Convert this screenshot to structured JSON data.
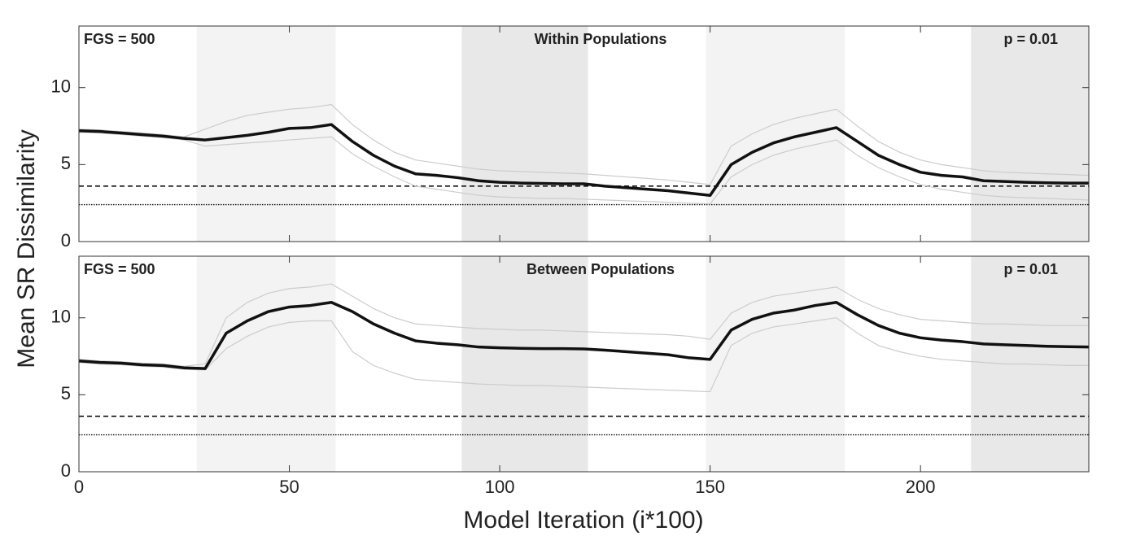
{
  "figure": {
    "ylabel": "Mean SR Dissimilarity",
    "xlabel": "Model Iteration (i*100)"
  },
  "chart_data": [
    {
      "type": "line",
      "title": "Within Populations",
      "annotations": [
        "FGS = 500",
        "p = 0.01"
      ],
      "xlim": [
        0,
        240
      ],
      "ylim": [
        0,
        14
      ],
      "xticks": [
        0,
        50,
        100,
        150,
        200
      ],
      "yticks": [
        0,
        5,
        10
      ],
      "shaded_regions": [
        {
          "x": [
            28,
            61
          ],
          "color": "#f3f3f3"
        },
        {
          "x": [
            91,
            121
          ],
          "color": "#e8e8e8"
        },
        {
          "x": [
            149,
            182
          ],
          "color": "#f3f3f3"
        },
        {
          "x": [
            212,
            240
          ],
          "color": "#e8e8e8"
        }
      ],
      "hlines": [
        {
          "y": 3.6,
          "style": "dashed"
        },
        {
          "y": 2.4,
          "style": "dotted"
        }
      ],
      "x": [
        0,
        5,
        10,
        15,
        20,
        25,
        30,
        35,
        40,
        45,
        50,
        55,
        60,
        65,
        70,
        75,
        80,
        85,
        90,
        95,
        100,
        105,
        110,
        115,
        120,
        125,
        130,
        135,
        140,
        145,
        150,
        155,
        160,
        165,
        170,
        175,
        180,
        185,
        190,
        195,
        200,
        205,
        210,
        215,
        220,
        225,
        230,
        235,
        240
      ],
      "runs": [
        {
          "color": "#cccccc",
          "values": [
            7.3,
            7.25,
            7.15,
            7.05,
            6.95,
            6.8,
            7.3,
            7.8,
            8.2,
            8.4,
            8.6,
            8.7,
            8.9,
            7.6,
            6.6,
            5.8,
            5.3,
            5.1,
            4.9,
            4.7,
            4.6,
            4.55,
            4.5,
            4.45,
            4.4,
            4.3,
            4.2,
            4.1,
            4.0,
            3.85,
            3.7,
            6.2,
            7.0,
            7.6,
            8.0,
            8.3,
            8.6,
            7.5,
            6.5,
            5.8,
            5.3,
            5.0,
            4.8,
            4.6,
            4.5,
            4.45,
            4.4,
            4.35,
            4.3
          ]
        },
        {
          "color": "#cccccc",
          "values": [
            7.1,
            7.05,
            6.95,
            6.85,
            6.75,
            6.6,
            6.2,
            6.3,
            6.4,
            6.5,
            6.6,
            6.7,
            6.8,
            5.7,
            4.9,
            4.2,
            3.6,
            3.4,
            3.2,
            3.0,
            2.9,
            2.85,
            2.8,
            2.8,
            2.75,
            2.7,
            2.65,
            2.6,
            2.55,
            2.5,
            2.45,
            4.2,
            5.0,
            5.6,
            6.0,
            6.3,
            6.6,
            5.6,
            4.8,
            4.2,
            3.7,
            3.4,
            3.2,
            3.0,
            2.9,
            2.85,
            2.8,
            2.75,
            2.7
          ]
        }
      ],
      "mean": {
        "color": "#111111",
        "values": [
          7.2,
          7.15,
          7.05,
          6.95,
          6.85,
          6.7,
          6.6,
          6.75,
          6.9,
          7.1,
          7.35,
          7.4,
          7.6,
          6.5,
          5.6,
          4.9,
          4.4,
          4.3,
          4.15,
          3.95,
          3.85,
          3.8,
          3.78,
          3.75,
          3.75,
          3.6,
          3.5,
          3.4,
          3.3,
          3.15,
          3.0,
          5.0,
          5.8,
          6.4,
          6.8,
          7.1,
          7.4,
          6.5,
          5.6,
          5.0,
          4.5,
          4.3,
          4.2,
          3.95,
          3.9,
          3.85,
          3.82,
          3.8,
          3.8
        ]
      }
    },
    {
      "type": "line",
      "title": "Between Populations",
      "annotations": [
        "FGS = 500",
        "p = 0.01"
      ],
      "xlim": [
        0,
        240
      ],
      "ylim": [
        0,
        14
      ],
      "xticks": [
        0,
        50,
        100,
        150,
        200
      ],
      "yticks": [
        0,
        5,
        10
      ],
      "shaded_regions": [
        {
          "x": [
            28,
            61
          ],
          "color": "#f3f3f3"
        },
        {
          "x": [
            91,
            121
          ],
          "color": "#e8e8e8"
        },
        {
          "x": [
            149,
            182
          ],
          "color": "#f3f3f3"
        },
        {
          "x": [
            212,
            240
          ],
          "color": "#e8e8e8"
        }
      ],
      "hlines": [
        {
          "y": 3.6,
          "style": "dashed"
        },
        {
          "y": 2.4,
          "style": "dotted"
        }
      ],
      "x": [
        0,
        5,
        10,
        15,
        20,
        25,
        30,
        35,
        40,
        45,
        50,
        55,
        60,
        65,
        70,
        75,
        80,
        85,
        90,
        95,
        100,
        105,
        110,
        115,
        120,
        125,
        130,
        135,
        140,
        145,
        150,
        155,
        160,
        165,
        170,
        175,
        180,
        185,
        190,
        195,
        200,
        205,
        210,
        215,
        220,
        225,
        230,
        235,
        240
      ],
      "runs": [
        {
          "color": "#cccccc",
          "values": [
            7.3,
            7.2,
            7.15,
            7.05,
            7.0,
            6.85,
            7.0,
            10.0,
            11.0,
            11.6,
            11.9,
            12.0,
            12.2,
            11.4,
            10.6,
            10.0,
            9.6,
            9.5,
            9.4,
            9.3,
            9.25,
            9.2,
            9.2,
            9.15,
            9.1,
            9.05,
            9.0,
            8.95,
            8.9,
            8.8,
            8.6,
            10.3,
            11.0,
            11.4,
            11.6,
            11.8,
            12.0,
            11.2,
            10.6,
            10.2,
            9.9,
            9.8,
            9.7,
            9.6,
            9.6,
            9.55,
            9.5,
            9.5,
            9.5
          ]
        },
        {
          "color": "#cccccc",
          "values": [
            7.1,
            7.0,
            6.95,
            6.85,
            6.8,
            6.65,
            6.6,
            8.0,
            8.8,
            9.4,
            9.7,
            9.8,
            9.8,
            7.8,
            6.9,
            6.4,
            6.0,
            5.9,
            5.8,
            5.7,
            5.65,
            5.6,
            5.6,
            5.55,
            5.5,
            5.45,
            5.4,
            5.35,
            5.3,
            5.25,
            5.2,
            8.2,
            9.0,
            9.4,
            9.6,
            9.8,
            10.0,
            9.0,
            8.2,
            7.8,
            7.5,
            7.3,
            7.2,
            7.1,
            7.0,
            7.0,
            6.95,
            6.9,
            6.9
          ]
        }
      ],
      "mean": {
        "color": "#111111",
        "values": [
          7.2,
          7.1,
          7.05,
          6.95,
          6.9,
          6.75,
          6.7,
          9.0,
          9.8,
          10.4,
          10.7,
          10.8,
          11.0,
          10.4,
          9.6,
          9.0,
          8.5,
          8.35,
          8.25,
          8.1,
          8.05,
          8.02,
          8.0,
          8.0,
          7.98,
          7.9,
          7.8,
          7.7,
          7.6,
          7.4,
          7.3,
          9.2,
          9.9,
          10.3,
          10.5,
          10.8,
          11.0,
          10.2,
          9.5,
          9.0,
          8.7,
          8.55,
          8.45,
          8.3,
          8.25,
          8.2,
          8.15,
          8.12,
          8.1
        ]
      }
    }
  ]
}
